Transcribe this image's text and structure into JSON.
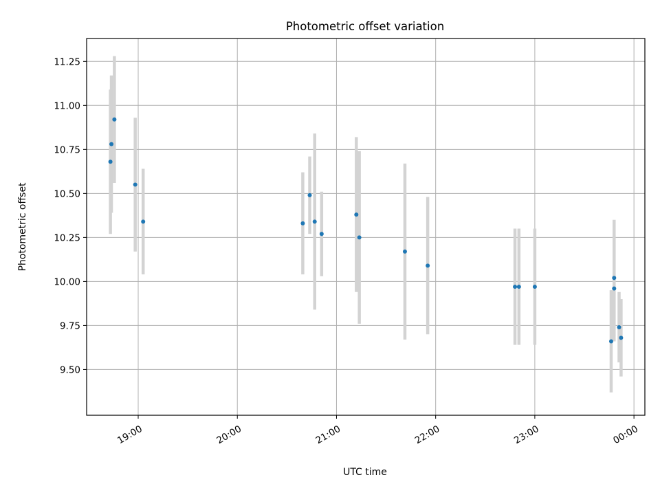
{
  "chart_data": {
    "type": "scatter",
    "title": "Photometric offset variation",
    "xlabel": "UTC time",
    "ylabel": "Photometric offset",
    "x_unit": "time of day (hours, UTC); values past 24 are after midnight",
    "xlim": [
      18.48,
      24.11
    ],
    "ylim": [
      9.24,
      11.38
    ],
    "x_ticks": [
      {
        "value": 19,
        "label": "19:00"
      },
      {
        "value": 20,
        "label": "20:00"
      },
      {
        "value": 21,
        "label": "21:00"
      },
      {
        "value": 22,
        "label": "22:00"
      },
      {
        "value": 23,
        "label": "23:00"
      },
      {
        "value": 24,
        "label": "00:00"
      }
    ],
    "y_ticks": [
      {
        "value": 9.5,
        "label": "9.50"
      },
      {
        "value": 9.75,
        "label": "9.75"
      },
      {
        "value": 10.0,
        "label": "10.00"
      },
      {
        "value": 10.25,
        "label": "10.25"
      },
      {
        "value": 10.5,
        "label": "10.50"
      },
      {
        "value": 10.75,
        "label": "10.75"
      },
      {
        "value": 11.0,
        "label": "11.00"
      },
      {
        "value": 11.25,
        "label": "11.25"
      }
    ],
    "grid": true,
    "point_color": "#1f77b4",
    "errorbar_color": "#d3d3d3",
    "points": [
      {
        "x": 18.72,
        "y": 10.68,
        "err": 0.41
      },
      {
        "x": 18.73,
        "y": 10.78,
        "err": 0.39
      },
      {
        "x": 18.76,
        "y": 10.92,
        "err": 0.36
      },
      {
        "x": 18.97,
        "y": 10.55,
        "err": 0.38
      },
      {
        "x": 19.05,
        "y": 10.34,
        "err": 0.3
      },
      {
        "x": 20.66,
        "y": 10.33,
        "err": 0.29
      },
      {
        "x": 20.73,
        "y": 10.49,
        "err": 0.22
      },
      {
        "x": 20.78,
        "y": 10.34,
        "err": 0.5
      },
      {
        "x": 20.85,
        "y": 10.27,
        "err": 0.24
      },
      {
        "x": 21.2,
        "y": 10.38,
        "err": 0.44
      },
      {
        "x": 21.23,
        "y": 10.25,
        "err": 0.49
      },
      {
        "x": 21.69,
        "y": 10.17,
        "err": 0.5
      },
      {
        "x": 21.92,
        "y": 10.09,
        "err": 0.39
      },
      {
        "x": 22.8,
        "y": 9.97,
        "err": 0.33
      },
      {
        "x": 22.84,
        "y": 9.97,
        "err": 0.33
      },
      {
        "x": 23.0,
        "y": 9.97,
        "err": 0.33
      },
      {
        "x": 23.77,
        "y": 9.66,
        "err": 0.29
      },
      {
        "x": 23.8,
        "y": 10.02,
        "err": 0.33
      },
      {
        "x": 23.8,
        "y": 9.96,
        "err": 0.3
      },
      {
        "x": 23.85,
        "y": 9.74,
        "err": 0.2
      },
      {
        "x": 23.87,
        "y": 9.68,
        "err": 0.22
      }
    ]
  }
}
